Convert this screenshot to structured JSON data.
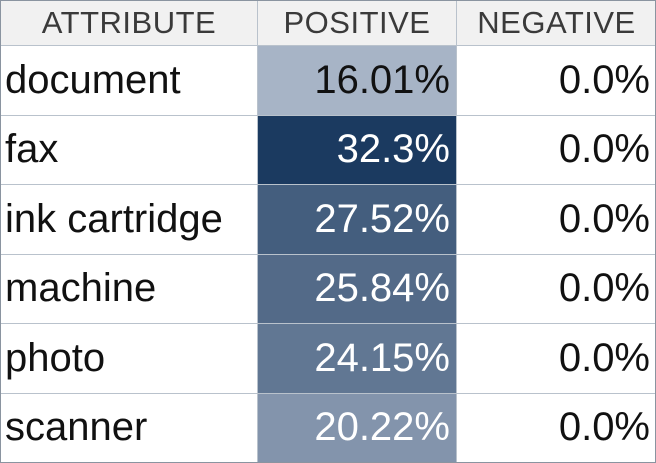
{
  "chart_data": {
    "type": "table",
    "columns": [
      "ATTRIBUTE",
      "POSITIVE",
      "NEGATIVE"
    ],
    "rows": [
      {
        "attribute": "document",
        "positive": "16.01%",
        "negative": "0.0%",
        "positive_value": 16.01,
        "negative_value": 0.0
      },
      {
        "attribute": "fax",
        "positive": "32.3%",
        "negative": "0.0%",
        "positive_value": 32.3,
        "negative_value": 0.0
      },
      {
        "attribute": "ink cartridge",
        "positive": "27.52%",
        "negative": "0.0%",
        "positive_value": 27.52,
        "negative_value": 0.0
      },
      {
        "attribute": "machine",
        "positive": "25.84%",
        "negative": "0.0%",
        "positive_value": 25.84,
        "negative_value": 0.0
      },
      {
        "attribute": "photo",
        "positive": "24.15%",
        "negative": "0.0%",
        "positive_value": 24.15,
        "negative_value": 0.0
      },
      {
        "attribute": "scanner",
        "positive": "20.22%",
        "negative": "0.0%",
        "positive_value": 20.22,
        "negative_value": 0.0
      }
    ],
    "positive_color_low": "#a7b4c6",
    "positive_color_high": "#1b3a60",
    "text_color_dark": "#111111",
    "text_color_light": "#ffffff"
  }
}
